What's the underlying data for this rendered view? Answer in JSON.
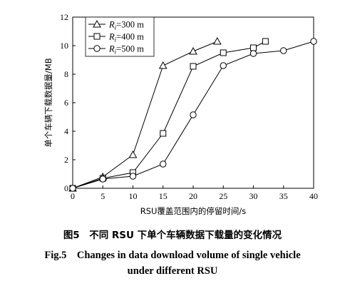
{
  "chart_data": {
    "type": "line",
    "xlabel": "RSU覆盖范围内的停留时间/s",
    "ylabel": "单个车辆下载数据量/MB",
    "xlim": [
      0,
      40
    ],
    "ylim": [
      0,
      12
    ],
    "xticks": [
      0,
      5,
      10,
      15,
      20,
      25,
      30,
      35,
      40
    ],
    "yticks": [
      0,
      2,
      4,
      6,
      8,
      10,
      12
    ],
    "grid": false,
    "legend_position": "top-left",
    "series": [
      {
        "name": "R_i=300 m",
        "legend_var": "R",
        "legend_sub": "i",
        "legend_value": "=300 m",
        "marker": "triangle",
        "x": [
          0,
          5,
          10,
          15,
          20,
          24
        ],
        "y": [
          0.0,
          0.8,
          2.35,
          8.6,
          9.6,
          10.3
        ]
      },
      {
        "name": "R_i=400 m",
        "legend_var": "R",
        "legend_sub": "i",
        "legend_value": "=400 m",
        "marker": "square",
        "x": [
          0,
          5,
          10,
          15,
          20,
          25,
          30,
          32
        ],
        "y": [
          0.0,
          0.7,
          1.1,
          3.85,
          8.55,
          9.5,
          9.85,
          10.3
        ]
      },
      {
        "name": "R_i=500 m",
        "legend_var": "R",
        "legend_sub": "i",
        "legend_value": "=500 m",
        "marker": "circle",
        "x": [
          0,
          5,
          10,
          15,
          20,
          25,
          30,
          35,
          40
        ],
        "y": [
          0.0,
          0.65,
          0.85,
          1.7,
          5.15,
          8.6,
          9.45,
          9.65,
          10.3
        ]
      }
    ]
  },
  "captions": {
    "cn": "图5　不同 RSU 下单个车辆数据下载量的变化情况",
    "en_line1": "Fig.5　Changes in data download volume of single vehicle",
    "en_line2": "under different RSU"
  }
}
